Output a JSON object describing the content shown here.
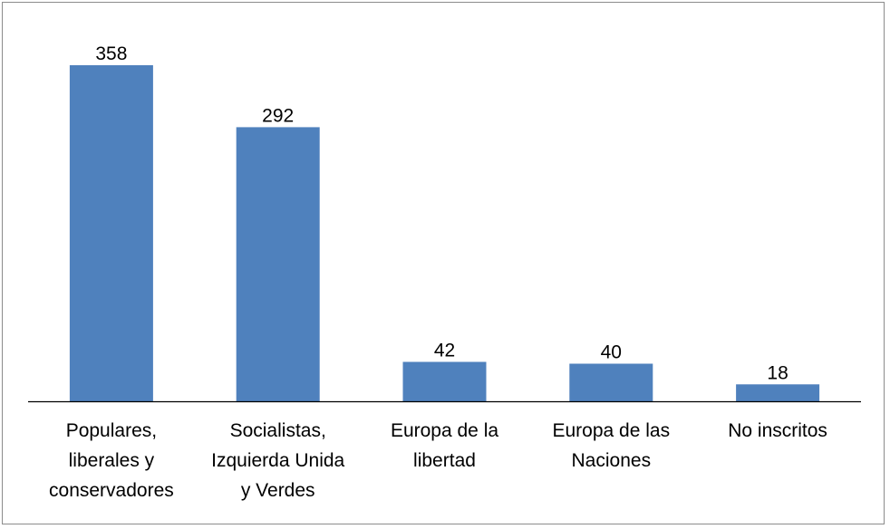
{
  "chart_data": {
    "type": "bar",
    "title": "",
    "xlabel": "",
    "ylabel": "",
    "ylim": [
      0,
      358
    ],
    "grid": false,
    "legend": "none",
    "bar_color": "#4f81bd",
    "categories": [
      "Populares, liberales y conservadores",
      "Socialistas, Izquierda Unida y Verdes",
      "Europa de la libertad",
      "Europa de las Naciones",
      "No inscritos"
    ],
    "category_lines": [
      [
        "Populares,",
        "liberales y",
        "conservadores"
      ],
      [
        "Socialistas,",
        "Izquierda Unida",
        "y Verdes"
      ],
      [
        "Europa de la",
        "libertad"
      ],
      [
        "Europa de las",
        "Naciones"
      ],
      [
        "No inscritos"
      ]
    ],
    "values": [
      358,
      292,
      42,
      40,
      18
    ],
    "value_labels": [
      "358",
      "292",
      "42",
      "40",
      "18"
    ]
  }
}
